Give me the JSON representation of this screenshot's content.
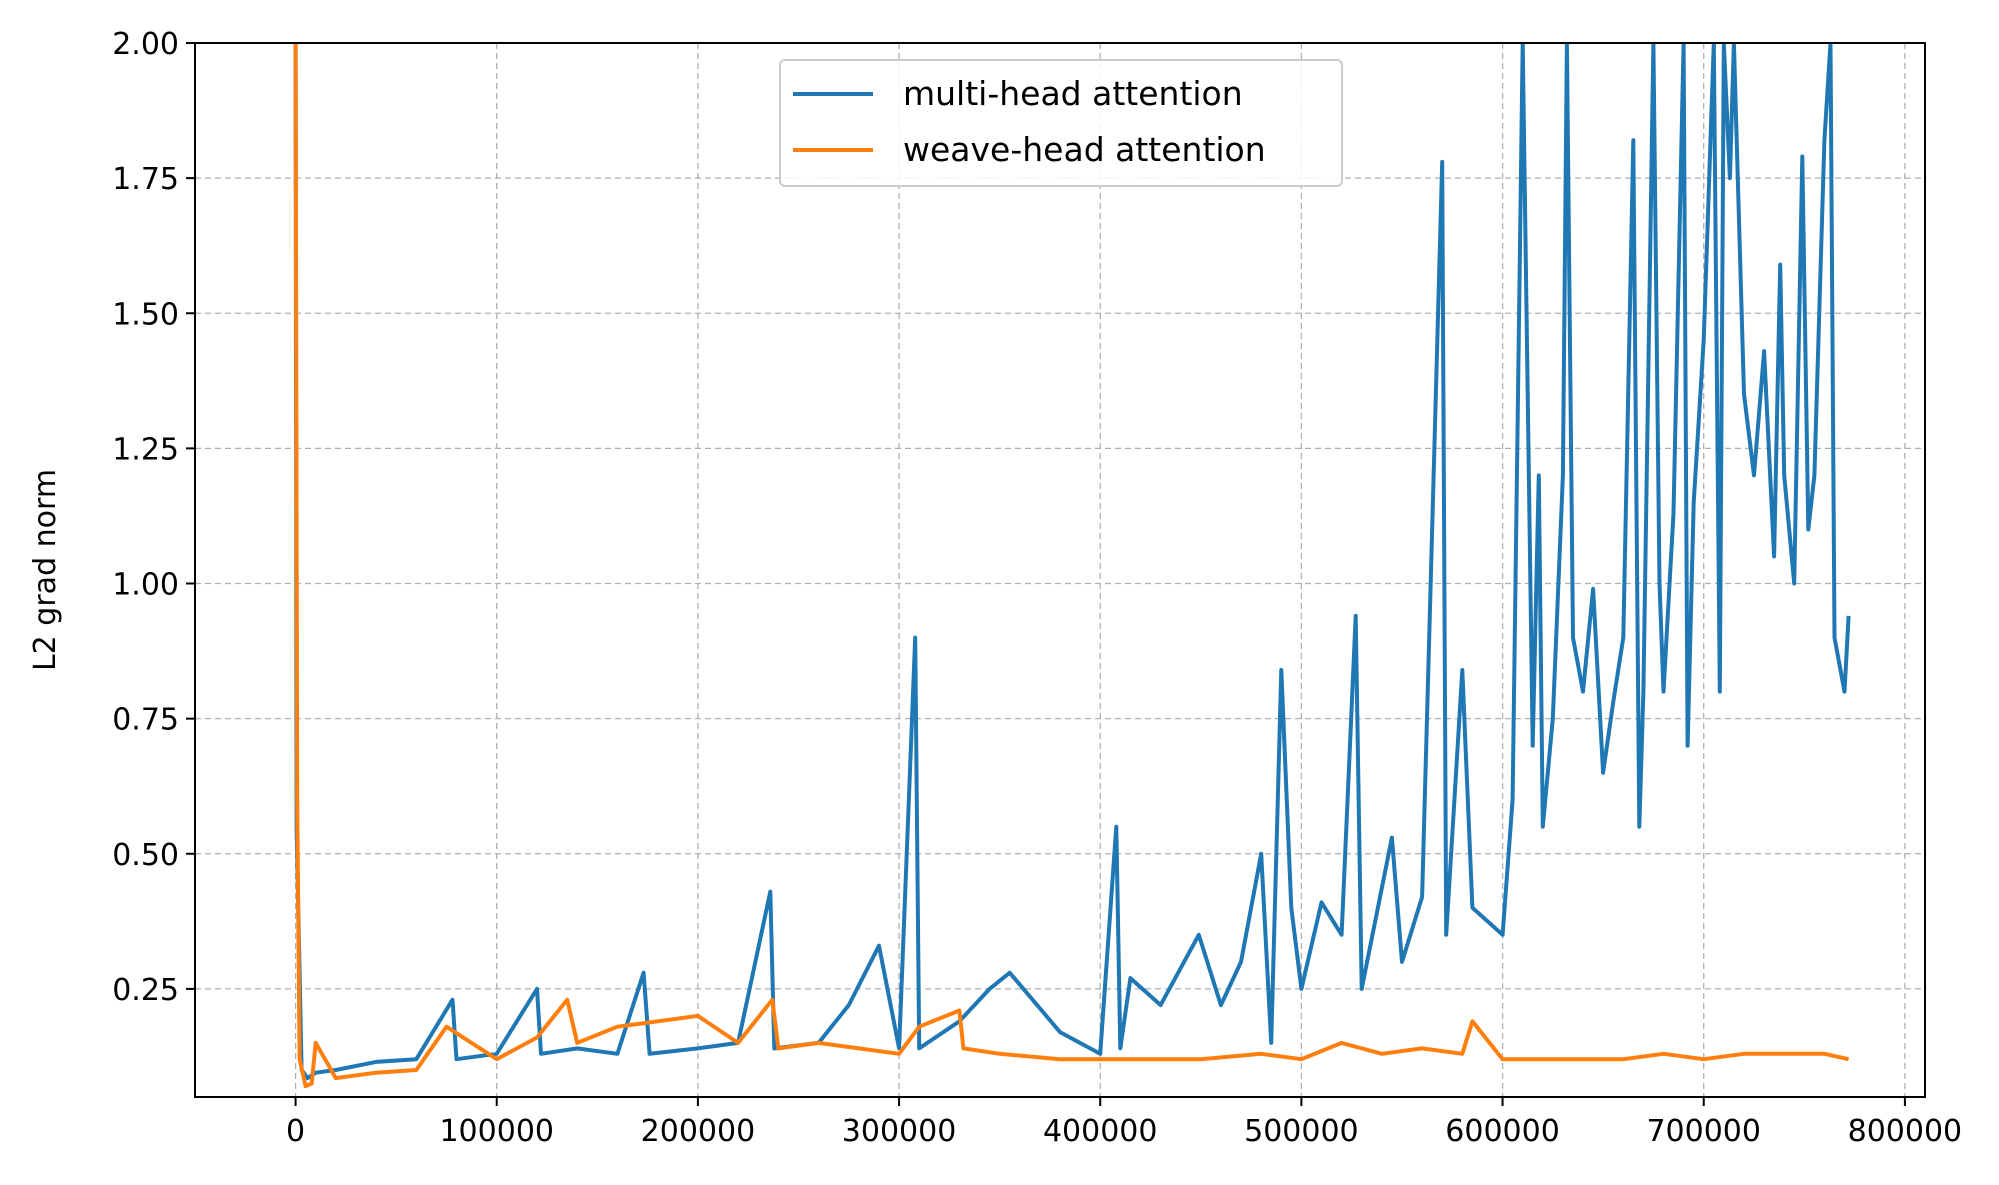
{
  "chart_data": {
    "type": "line",
    "title": "",
    "xlabel": "",
    "ylabel": "L2 grad norm",
    "xlim": [
      -50000,
      810000
    ],
    "ylim": [
      0.05,
      2.0
    ],
    "xticks": [
      0,
      100000,
      200000,
      300000,
      400000,
      500000,
      600000,
      700000,
      800000
    ],
    "xtick_labels": [
      "0",
      "100000",
      "200000",
      "300000",
      "400000",
      "500000",
      "600000",
      "700000",
      "800000"
    ],
    "yticks": [
      0.25,
      0.5,
      0.75,
      1.0,
      1.25,
      1.5,
      1.75,
      2.0
    ],
    "ytick_labels": [
      "0.25",
      "0.50",
      "0.75",
      "1.00",
      "1.25",
      "1.50",
      "1.75",
      "2.00"
    ],
    "grid": true,
    "legend": {
      "placement": "top-center"
    },
    "series": [
      {
        "name": "multi-head attention",
        "color": "#1f77b4",
        "x": [
          0,
          500,
          3000,
          6000,
          10000,
          20000,
          40000,
          60000,
          78000,
          80000,
          100000,
          120000,
          122000,
          140000,
          160000,
          173000,
          176000,
          200000,
          220000,
          236000,
          238000,
          260000,
          275000,
          290000,
          300000,
          308000,
          310000,
          330000,
          345000,
          355000,
          380000,
          400000,
          408000,
          410000,
          415000,
          430000,
          449000,
          460000,
          470000,
          480000,
          485000,
          490000,
          495000,
          500000,
          510000,
          520000,
          527000,
          530000,
          545000,
          550000,
          560000,
          570000,
          572000,
          580000,
          585000,
          600000,
          605000,
          610000,
          615000,
          618000,
          620000,
          625000,
          630000,
          632000,
          635000,
          640000,
          645000,
          650000,
          655000,
          660000,
          665000,
          668000,
          670000,
          675000,
          678000,
          680000,
          685000,
          690000,
          692000,
          695000,
          700000,
          705000,
          708000,
          710000,
          713000,
          715000,
          720000,
          725000,
          730000,
          735000,
          738000,
          740000,
          745000,
          749000,
          752000,
          755000,
          760000,
          763000,
          765000,
          770000,
          772000
        ],
        "y": [
          2.0,
          0.55,
          0.1,
          0.085,
          0.095,
          0.1,
          0.115,
          0.12,
          0.23,
          0.12,
          0.13,
          0.25,
          0.13,
          0.14,
          0.13,
          0.28,
          0.13,
          0.14,
          0.15,
          0.43,
          0.14,
          0.15,
          0.22,
          0.33,
          0.14,
          0.9,
          0.14,
          0.19,
          0.25,
          0.28,
          0.17,
          0.13,
          0.55,
          0.14,
          0.27,
          0.22,
          0.35,
          0.22,
          0.3,
          0.5,
          0.15,
          0.84,
          0.4,
          0.25,
          0.41,
          0.35,
          0.94,
          0.25,
          0.53,
          0.3,
          0.42,
          1.78,
          0.35,
          0.84,
          0.4,
          0.35,
          0.6,
          2.0,
          0.7,
          1.2,
          0.55,
          0.75,
          1.2,
          2.0,
          0.9,
          0.8,
          0.99,
          0.65,
          0.78,
          0.9,
          1.82,
          0.55,
          0.8,
          2.0,
          1.0,
          0.8,
          1.13,
          2.0,
          0.7,
          1.15,
          1.45,
          2.0,
          0.8,
          2.0,
          1.75,
          2.0,
          1.35,
          1.2,
          1.43,
          1.05,
          1.59,
          1.2,
          1.0,
          1.79,
          1.1,
          1.2,
          1.82,
          2.0,
          0.9,
          0.8,
          0.94
        ]
      },
      {
        "name": "weave-head attention",
        "color": "#ff7f0e",
        "x": [
          0,
          800,
          2000,
          5000,
          8000,
          10000,
          20000,
          40000,
          60000,
          75000,
          100000,
          120000,
          135000,
          140000,
          160000,
          200000,
          220000,
          237000,
          240000,
          260000,
          280000,
          300000,
          310000,
          330000,
          332000,
          350000,
          380000,
          400000,
          420000,
          450000,
          480000,
          500000,
          520000,
          540000,
          560000,
          580000,
          585000,
          600000,
          620000,
          640000,
          660000,
          680000,
          700000,
          720000,
          740000,
          760000,
          772000
        ],
        "y": [
          2.0,
          0.6,
          0.12,
          0.07,
          0.075,
          0.15,
          0.085,
          0.095,
          0.1,
          0.18,
          0.12,
          0.16,
          0.23,
          0.15,
          0.18,
          0.2,
          0.15,
          0.23,
          0.14,
          0.15,
          0.14,
          0.13,
          0.18,
          0.21,
          0.14,
          0.13,
          0.12,
          0.12,
          0.12,
          0.12,
          0.13,
          0.12,
          0.15,
          0.13,
          0.14,
          0.13,
          0.19,
          0.12,
          0.12,
          0.12,
          0.12,
          0.13,
          0.12,
          0.13,
          0.13,
          0.13,
          0.12
        ]
      }
    ]
  }
}
